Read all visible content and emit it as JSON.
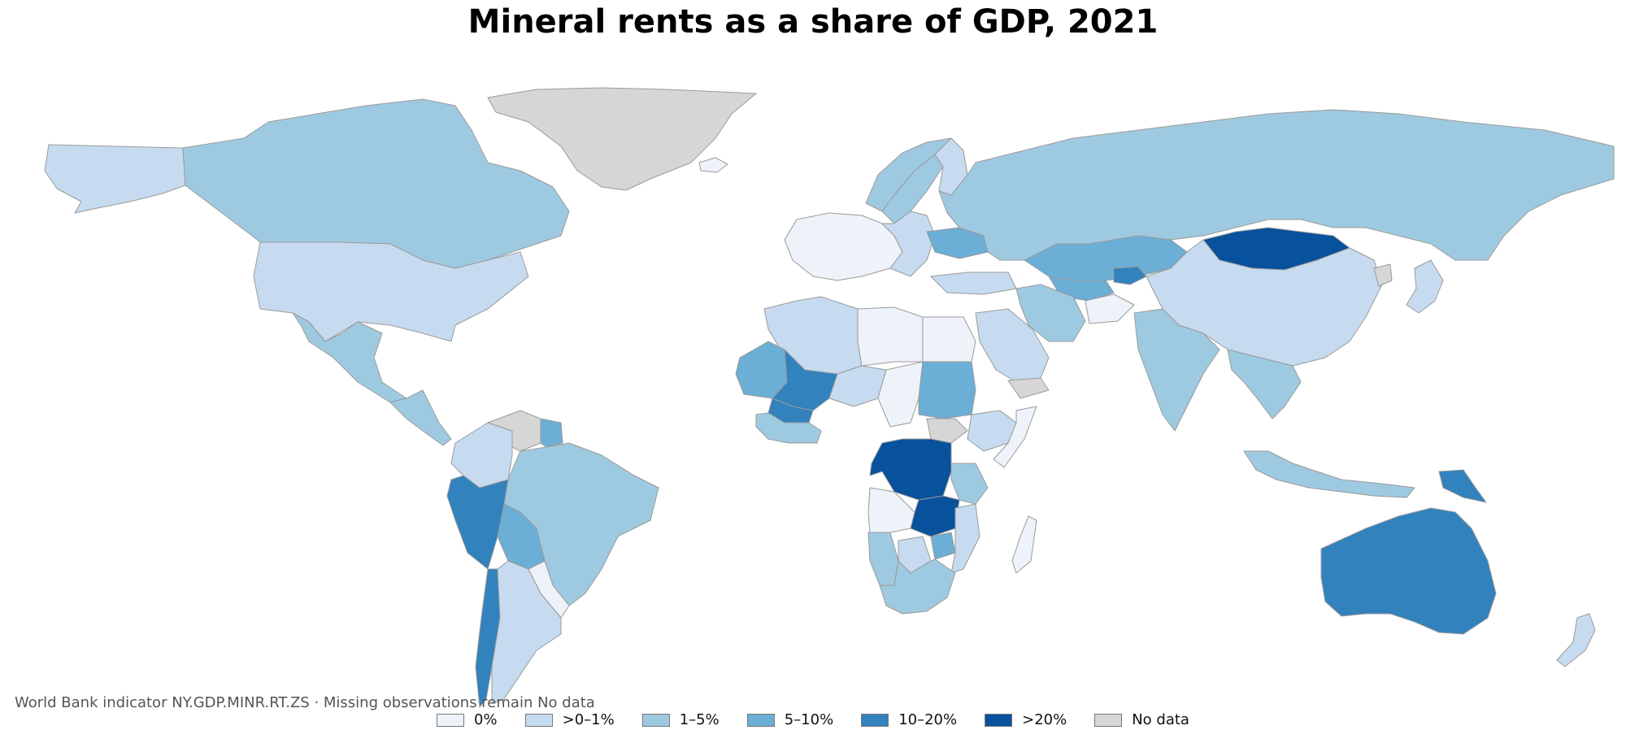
{
  "title": "Mineral rents as a share of GDP, 2021",
  "source_note": "World Bank indicator NY.GDP.MINR.RT.ZS · Missing observations remain No data",
  "legend": [
    {
      "label": "0%",
      "color": "#eef3f9"
    },
    {
      "label": ">0–1%",
      "color": "#c6dbef"
    },
    {
      "label": "1–5%",
      "color": "#9ecae1"
    },
    {
      "label": "5–10%",
      "color": "#6baed6"
    },
    {
      "label": "10–20%",
      "color": "#3182bd"
    },
    {
      "label": ">20%",
      "color": "#08519c"
    },
    {
      "label": "No data",
      "color": "#d6d6d6"
    }
  ],
  "regions": [
    {
      "name": "Alaska",
      "class": ">0–1%"
    },
    {
      "name": "Canada",
      "class": "1–5%"
    },
    {
      "name": "Greenland",
      "class": "No data"
    },
    {
      "name": "United States",
      "class": ">0–1%"
    },
    {
      "name": "Mexico",
      "class": "1–5%"
    },
    {
      "name": "Central America",
      "class": "1–5%"
    },
    {
      "name": "Colombia",
      "class": ">0–1%"
    },
    {
      "name": "Venezuela",
      "class": "No data"
    },
    {
      "name": "Guyana",
      "class": "5–10%"
    },
    {
      "name": "Brazil",
      "class": "1–5%"
    },
    {
      "name": "Peru",
      "class": "10–20%"
    },
    {
      "name": "Bolivia",
      "class": "5–10%"
    },
    {
      "name": "Chile",
      "class": "10–20%"
    },
    {
      "name": "Argentina",
      "class": ">0–1%"
    },
    {
      "name": "Paraguay",
      "class": "0%"
    },
    {
      "name": "Iceland",
      "class": "0%"
    },
    {
      "name": "Norway",
      "class": "1–5%"
    },
    {
      "name": "Sweden",
      "class": "1–5%"
    },
    {
      "name": "Finland",
      "class": ">0–1%"
    },
    {
      "name": "Western Europe",
      "class": "0%"
    },
    {
      "name": "Eastern Europe",
      "class": ">0–1%"
    },
    {
      "name": "Ukraine",
      "class": "5–10%"
    },
    {
      "name": "Russia",
      "class": "1–5%"
    },
    {
      "name": "Kazakhstan",
      "class": "5–10%"
    },
    {
      "name": "Uzbekistan",
      "class": "5–10%"
    },
    {
      "name": "Kyrgyzstan",
      "class": "10–20%"
    },
    {
      "name": "Mongolia",
      "class": ">20%"
    },
    {
      "name": "China",
      "class": ">0–1%"
    },
    {
      "name": "North Korea",
      "class": "No data"
    },
    {
      "name": "Japan",
      "class": ">0–1%"
    },
    {
      "name": "Turkey",
      "class": ">0–1%"
    },
    {
      "name": "Iran",
      "class": "1–5%"
    },
    {
      "name": "Afghanistan",
      "class": "0%"
    },
    {
      "name": "Saudi Arabia",
      "class": ">0–1%"
    },
    {
      "name": "Yemen",
      "class": "No data"
    },
    {
      "name": "India",
      "class": "1–5%"
    },
    {
      "name": "Southeast Asia",
      "class": "1–5%"
    },
    {
      "name": "Indonesia",
      "class": "1–5%"
    },
    {
      "name": "Papua New Guinea",
      "class": "10–20%"
    },
    {
      "name": "Australia",
      "class": "10–20%"
    },
    {
      "name": "New Zealand",
      "class": ">0–1%"
    },
    {
      "name": "North Africa",
      "class": ">0–1%"
    },
    {
      "name": "Libya",
      "class": "0%"
    },
    {
      "name": "Egypt",
      "class": "0%"
    },
    {
      "name": "Mauritania",
      "class": "5–10%"
    },
    {
      "name": "Mali",
      "class": "10–20%"
    },
    {
      "name": "Burkina Faso",
      "class": "10–20%"
    },
    {
      "name": "Niger",
      "class": ">0–1%"
    },
    {
      "name": "Chad",
      "class": "0%"
    },
    {
      "name": "Sudan",
      "class": "5–10%"
    },
    {
      "name": "Ethiopia",
      "class": ">0–1%"
    },
    {
      "name": "Somalia",
      "class": "0%"
    },
    {
      "name": "West Africa coast",
      "class": "1–5%"
    },
    {
      "name": "DR Congo",
      "class": ">20%"
    },
    {
      "name": "Zambia",
      "class": ">20%"
    },
    {
      "name": "Angola",
      "class": "0%"
    },
    {
      "name": "Tanzania",
      "class": "1–5%"
    },
    {
      "name": "Namibia",
      "class": "1–5%"
    },
    {
      "name": "Botswana",
      "class": ">0–1%"
    },
    {
      "name": "Zimbabwe",
      "class": "5–10%"
    },
    {
      "name": "South Africa",
      "class": "1–5%"
    },
    {
      "name": "Mozambique",
      "class": ">0–1%"
    },
    {
      "name": "Madagascar",
      "class": "0%"
    },
    {
      "name": "South Sudan",
      "class": "No data"
    }
  ]
}
